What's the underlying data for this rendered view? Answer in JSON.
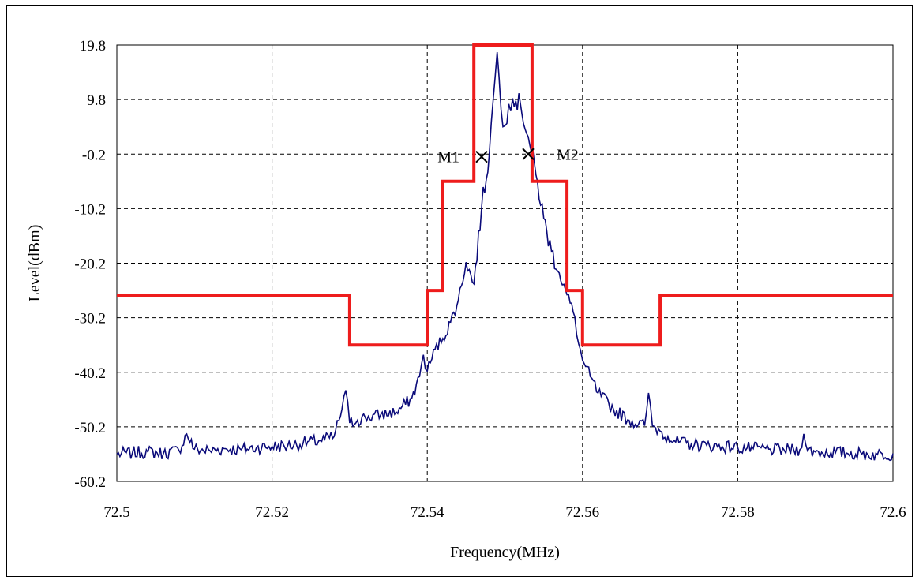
{
  "chart_data": {
    "type": "line",
    "title": "",
    "xlabel": "Frequency(MHz)",
    "ylabel": "Level(dBm)",
    "xlim": [
      72.5,
      72.6
    ],
    "ylim": [
      -60.2,
      19.8
    ],
    "x_ticks": [
      "72.5",
      "72.52",
      "72.54",
      "72.56",
      "72.58",
      "72.6"
    ],
    "y_ticks": [
      "19.8",
      "9.8",
      "-0.2",
      "-10.2",
      "-20.2",
      "-30.2",
      "-40.2",
      "-50.2",
      "-60.2"
    ],
    "grid": "dashed",
    "legend": "none",
    "series": [
      {
        "color": "#0b0b7a",
        "x": [
          72.5,
          72.502,
          72.504,
          72.506,
          72.508,
          72.509,
          72.51,
          72.512,
          72.514,
          72.516,
          72.518,
          72.52,
          72.522,
          72.524,
          72.526,
          72.528,
          72.529,
          72.5295,
          72.53,
          72.531,
          72.532,
          72.534,
          72.536,
          72.538,
          72.539,
          72.5395,
          72.54,
          72.541,
          72.542,
          72.543,
          72.544,
          72.545,
          72.546,
          72.547,
          72.548,
          72.5485,
          72.549,
          72.5495,
          72.55,
          72.5505,
          72.551,
          72.552,
          72.553,
          72.554,
          72.555,
          72.556,
          72.557,
          72.558,
          72.559,
          72.5595,
          72.56,
          72.561,
          72.562,
          72.564,
          72.566,
          72.568,
          72.5685,
          72.569,
          72.57,
          72.571,
          72.572,
          72.574,
          72.576,
          72.578,
          72.58,
          72.582,
          72.584,
          72.586,
          72.588,
          72.5885,
          72.589,
          72.59,
          72.592,
          72.594,
          72.596,
          72.598,
          72.6
        ],
        "y": [
          -55.2,
          -55,
          -54.8,
          -55.1,
          -54.5,
          -51.5,
          -54.3,
          -54.6,
          -54.2,
          -54.4,
          -54,
          -53.8,
          -53.7,
          -53.2,
          -52.8,
          -52,
          -47,
          -43.5,
          -49.5,
          -49,
          -48.5,
          -48,
          -47.5,
          -45,
          -41,
          -37,
          -40,
          -36,
          -34,
          -31,
          -27,
          -20,
          -24,
          -10,
          0,
          10,
          18.5,
          8,
          5,
          9,
          10,
          9,
          3,
          -4,
          -12,
          -18,
          -22,
          -26,
          -30,
          -35,
          -38,
          -41,
          -44,
          -47,
          -49,
          -50,
          -44,
          -50,
          -51,
          -52,
          -53,
          -53.4,
          -53.6,
          -53.8,
          -54,
          -54.2,
          -54.3,
          -54.5,
          -54.4,
          -51.5,
          -54.6,
          -54.8,
          -54.9,
          -55,
          -55.2,
          -55.3,
          -55.1
        ]
      },
      {
        "color": "#ee1c1c",
        "x": [
          72.5,
          72.53,
          72.53,
          72.54,
          72.54,
          72.542,
          72.542,
          72.546,
          72.546,
          72.5535,
          72.5535,
          72.558,
          72.558,
          72.56,
          72.56,
          72.57,
          72.57,
          72.6
        ],
        "y": [
          -26.2,
          -26.2,
          -35.2,
          -35.2,
          -25.2,
          -25.2,
          -5.2,
          -5.2,
          19.8,
          19.8,
          -5.2,
          -5.2,
          -25.2,
          -25.2,
          -35.2,
          -35.2,
          -26.2,
          -26.2
        ]
      }
    ],
    "markers": [
      {
        "label": "M1",
        "x": 72.547,
        "y": -0.7
      },
      {
        "label": "M2",
        "x": 72.553,
        "y": -0.2
      }
    ]
  }
}
